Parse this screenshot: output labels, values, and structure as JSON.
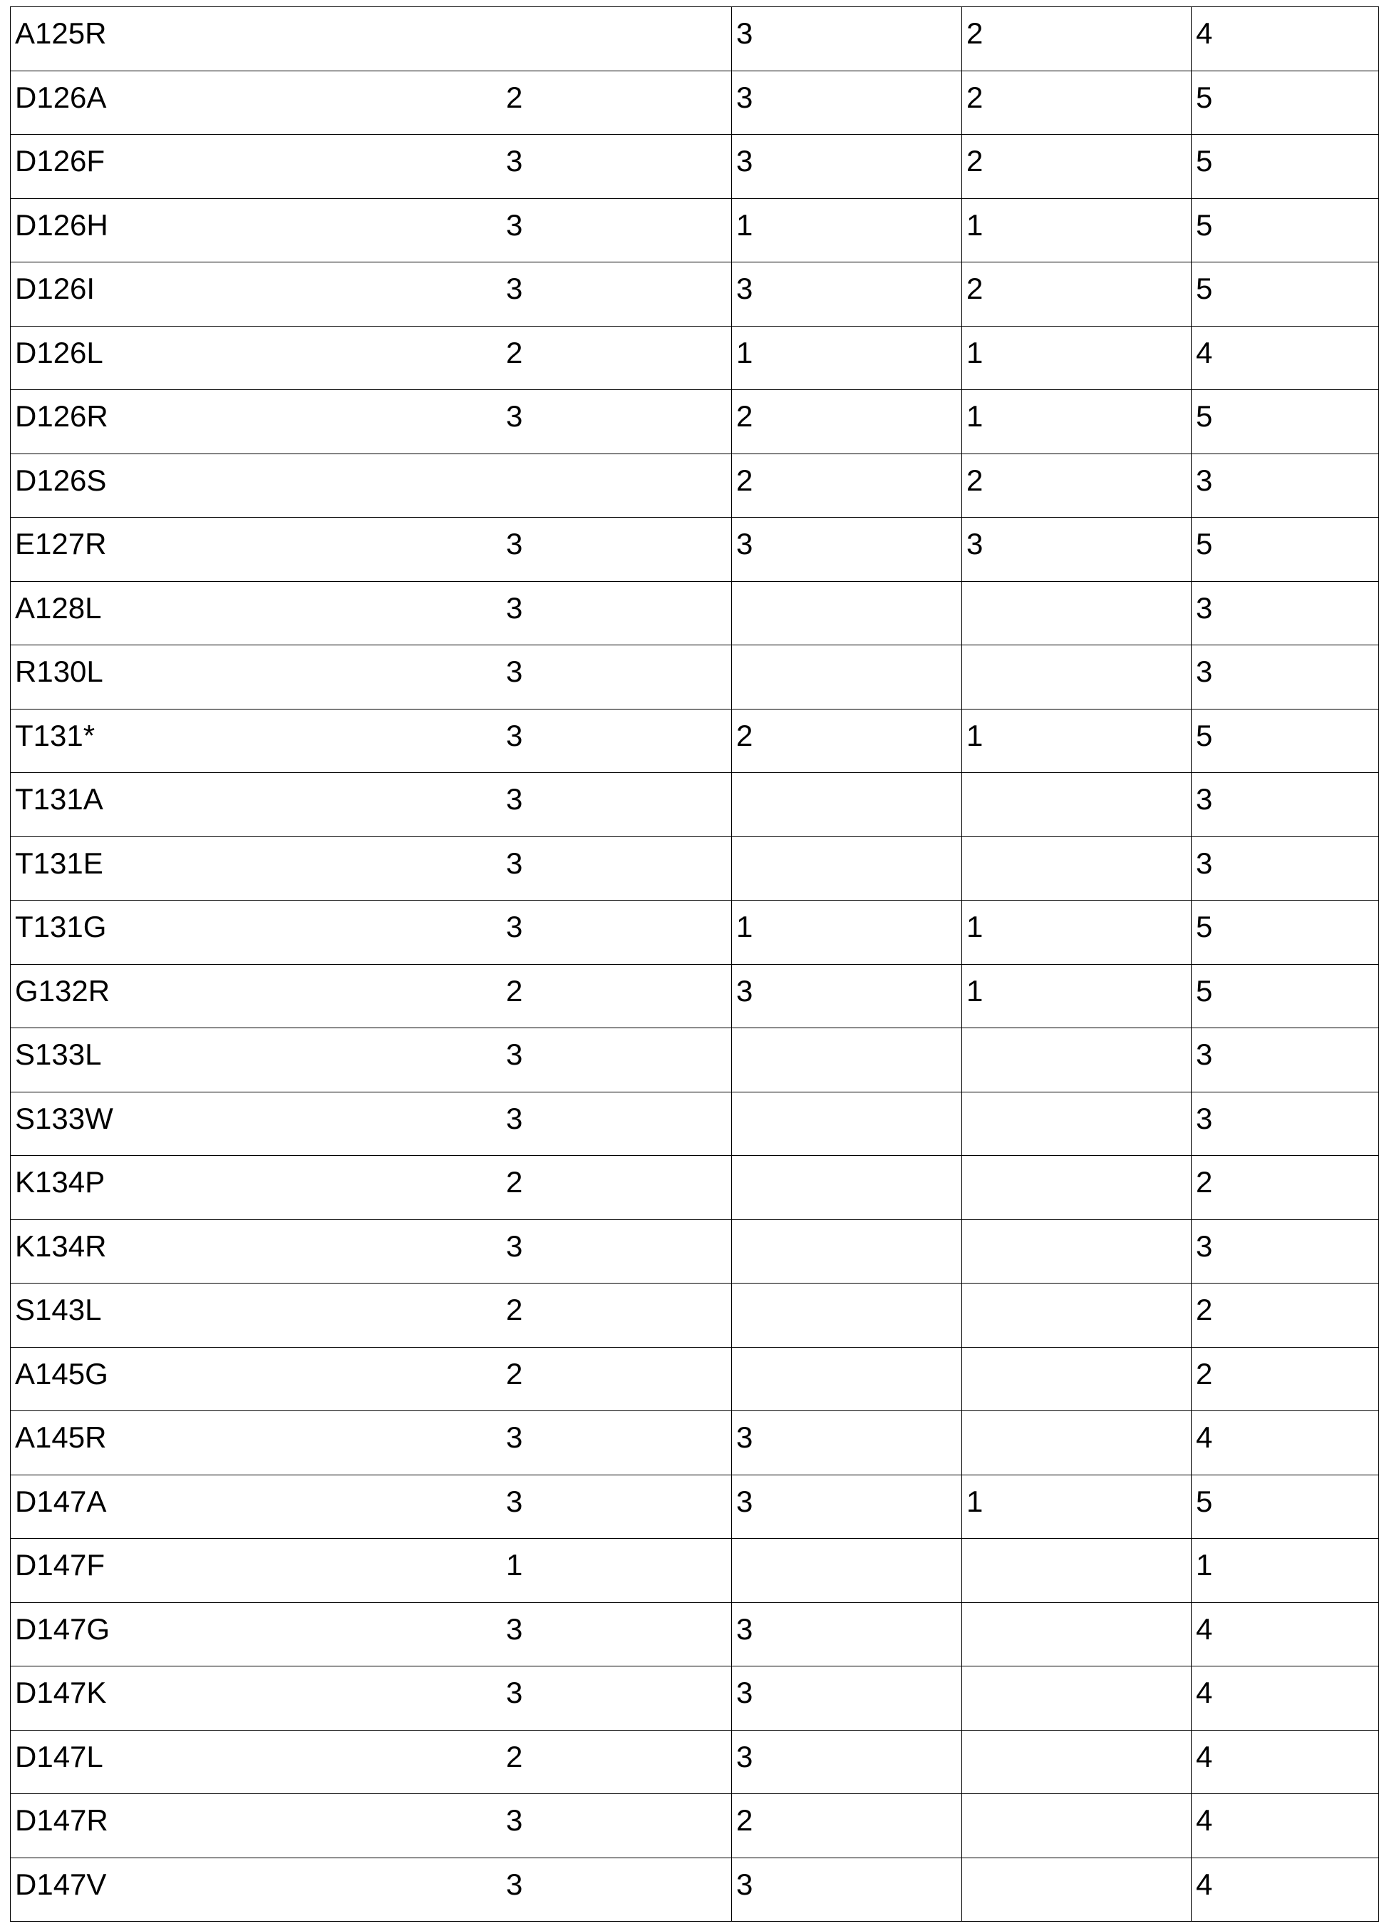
{
  "table": {
    "rows": [
      [
        "A125R",
        "",
        "3",
        "2",
        "4"
      ],
      [
        "D126A",
        "2",
        "3",
        "2",
        "5"
      ],
      [
        "D126F",
        "3",
        "3",
        "2",
        "5"
      ],
      [
        "D126H",
        "3",
        "1",
        "1",
        "5"
      ],
      [
        "D126I",
        "3",
        "3",
        "2",
        "5"
      ],
      [
        "D126L",
        "2",
        "1",
        "1",
        "4"
      ],
      [
        "D126R",
        "3",
        "2",
        "1",
        "5"
      ],
      [
        "D126S",
        "",
        "2",
        "2",
        "3"
      ],
      [
        "E127R",
        "3",
        "3",
        "3",
        "5"
      ],
      [
        "A128L",
        "3",
        "",
        "",
        "3"
      ],
      [
        "R130L",
        "3",
        "",
        "",
        "3"
      ],
      [
        "T131*",
        "3",
        "2",
        "1",
        "5"
      ],
      [
        "T131A",
        "3",
        "",
        "",
        "3"
      ],
      [
        "T131E",
        "3",
        "",
        "",
        "3"
      ],
      [
        "T131G",
        "3",
        "1",
        "1",
        "5"
      ],
      [
        "G132R",
        "2",
        "3",
        "1",
        "5"
      ],
      [
        "S133L",
        "3",
        "",
        "",
        "3"
      ],
      [
        "S133W",
        "3",
        "",
        "",
        "3"
      ],
      [
        "K134P",
        "2",
        "",
        "",
        "2"
      ],
      [
        "K134R",
        "3",
        "",
        "",
        "3"
      ],
      [
        "S143L",
        "2",
        "",
        "",
        "2"
      ],
      [
        "A145G",
        "2",
        "",
        "",
        "2"
      ],
      [
        "A145R",
        "3",
        "3",
        "",
        "4"
      ],
      [
        "D147A",
        "3",
        "3",
        "1",
        "5"
      ],
      [
        "D147F",
        "1",
        "",
        "",
        "1"
      ],
      [
        "D147G",
        "3",
        "3",
        "",
        "4"
      ],
      [
        "D147K",
        "3",
        "3",
        "",
        "4"
      ],
      [
        "D147L",
        "2",
        "3",
        "",
        "4"
      ],
      [
        "D147R",
        "3",
        "2",
        "",
        "4"
      ],
      [
        "D147V",
        "3",
        "3",
        "",
        "4"
      ]
    ]
  }
}
